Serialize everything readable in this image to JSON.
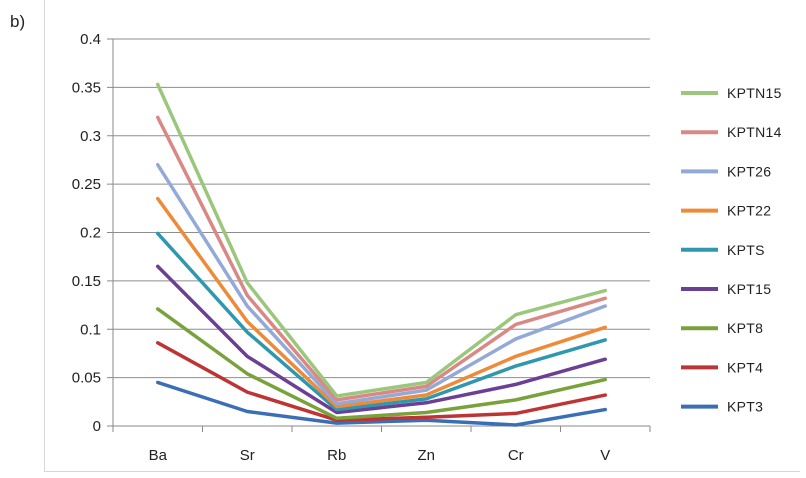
{
  "panel_label": "b)",
  "chart_data": {
    "type": "line",
    "categories": [
      "Ba",
      "Sr",
      "Rb",
      "Zn",
      "Cr",
      "V"
    ],
    "ylim": [
      0,
      0.4
    ],
    "yticks": [
      "0",
      "0.05",
      "0.1",
      "0.15",
      "0.2",
      "0.25",
      "0.3",
      "0.35",
      "0.4"
    ],
    "grid": true,
    "legend_position": "right",
    "series": [
      {
        "name": "KPTN15",
        "color": "#9bc77d",
        "values": [
          0.353,
          0.148,
          0.031,
          0.045,
          0.115,
          0.14
        ]
      },
      {
        "name": "KPTN14",
        "color": "#d98884",
        "values": [
          0.319,
          0.135,
          0.027,
          0.041,
          0.105,
          0.132
        ]
      },
      {
        "name": "KPT26",
        "color": "#93a9d7",
        "values": [
          0.27,
          0.124,
          0.023,
          0.037,
          0.09,
          0.124
        ]
      },
      {
        "name": "KPT22",
        "color": "#ee8a38",
        "values": [
          0.235,
          0.108,
          0.02,
          0.032,
          0.072,
          0.102
        ]
      },
      {
        "name": "KPTS",
        "color": "#2f98ae",
        "values": [
          0.199,
          0.097,
          0.017,
          0.028,
          0.062,
          0.089
        ]
      },
      {
        "name": "KPT15",
        "color": "#6b3f94",
        "values": [
          0.165,
          0.072,
          0.014,
          0.024,
          0.043,
          0.069
        ]
      },
      {
        "name": "KPT8",
        "color": "#79a23c",
        "values": [
          0.121,
          0.054,
          0.008,
          0.014,
          0.027,
          0.048
        ]
      },
      {
        "name": "KPT4",
        "color": "#be3434",
        "values": [
          0.086,
          0.035,
          0.006,
          0.009,
          0.013,
          0.032
        ]
      },
      {
        "name": "KPT3",
        "color": "#3a6fb6",
        "values": [
          0.045,
          0.015,
          0.003,
          0.006,
          0.001,
          0.017
        ]
      }
    ]
  }
}
